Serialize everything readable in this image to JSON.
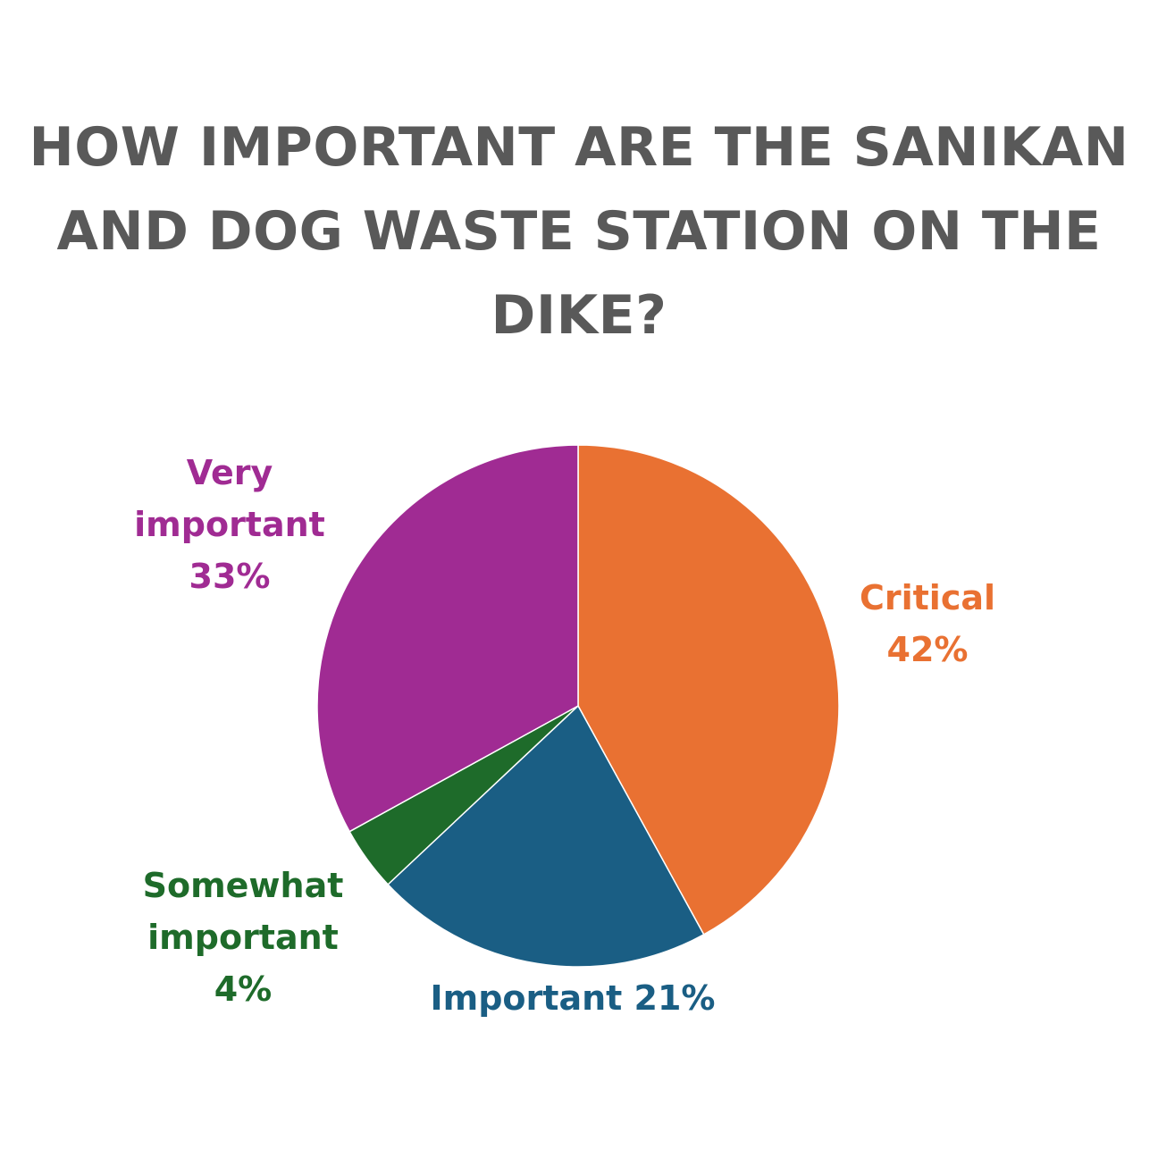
{
  "title_lines": [
    "HOW IMPORTANT ARE THE SANIKAN",
    "AND DOG WASTE STATION ON THE",
    "DIKE?"
  ],
  "chart_data": {
    "type": "pie",
    "title": "HOW IMPORTANT ARE THE SANIKAN AND DOG WASTE STATION ON THE DIKE?",
    "start_angle": "12 o'clock",
    "direction": "clockwise",
    "slices": [
      {
        "label": "Critical",
        "value": 42,
        "value_label": "42%",
        "color": "#E97132"
      },
      {
        "label": "Important",
        "value": 21,
        "value_label": "21%",
        "color": "#1A5E84"
      },
      {
        "label": "Somewhat important",
        "value": 4,
        "value_label": "4%",
        "color": "#1E6B2A"
      },
      {
        "label": "Very important",
        "value": 33,
        "value_label": "33%",
        "color": "#A02B93"
      }
    ],
    "data_labels": [
      {
        "lines": [
          "Critical",
          "42%"
        ]
      },
      {
        "lines": [
          "Important 21%"
        ]
      },
      {
        "lines": [
          "Somewhat",
          "important",
          "4%"
        ]
      },
      {
        "lines": [
          "Very",
          "important",
          "33%"
        ]
      }
    ]
  }
}
